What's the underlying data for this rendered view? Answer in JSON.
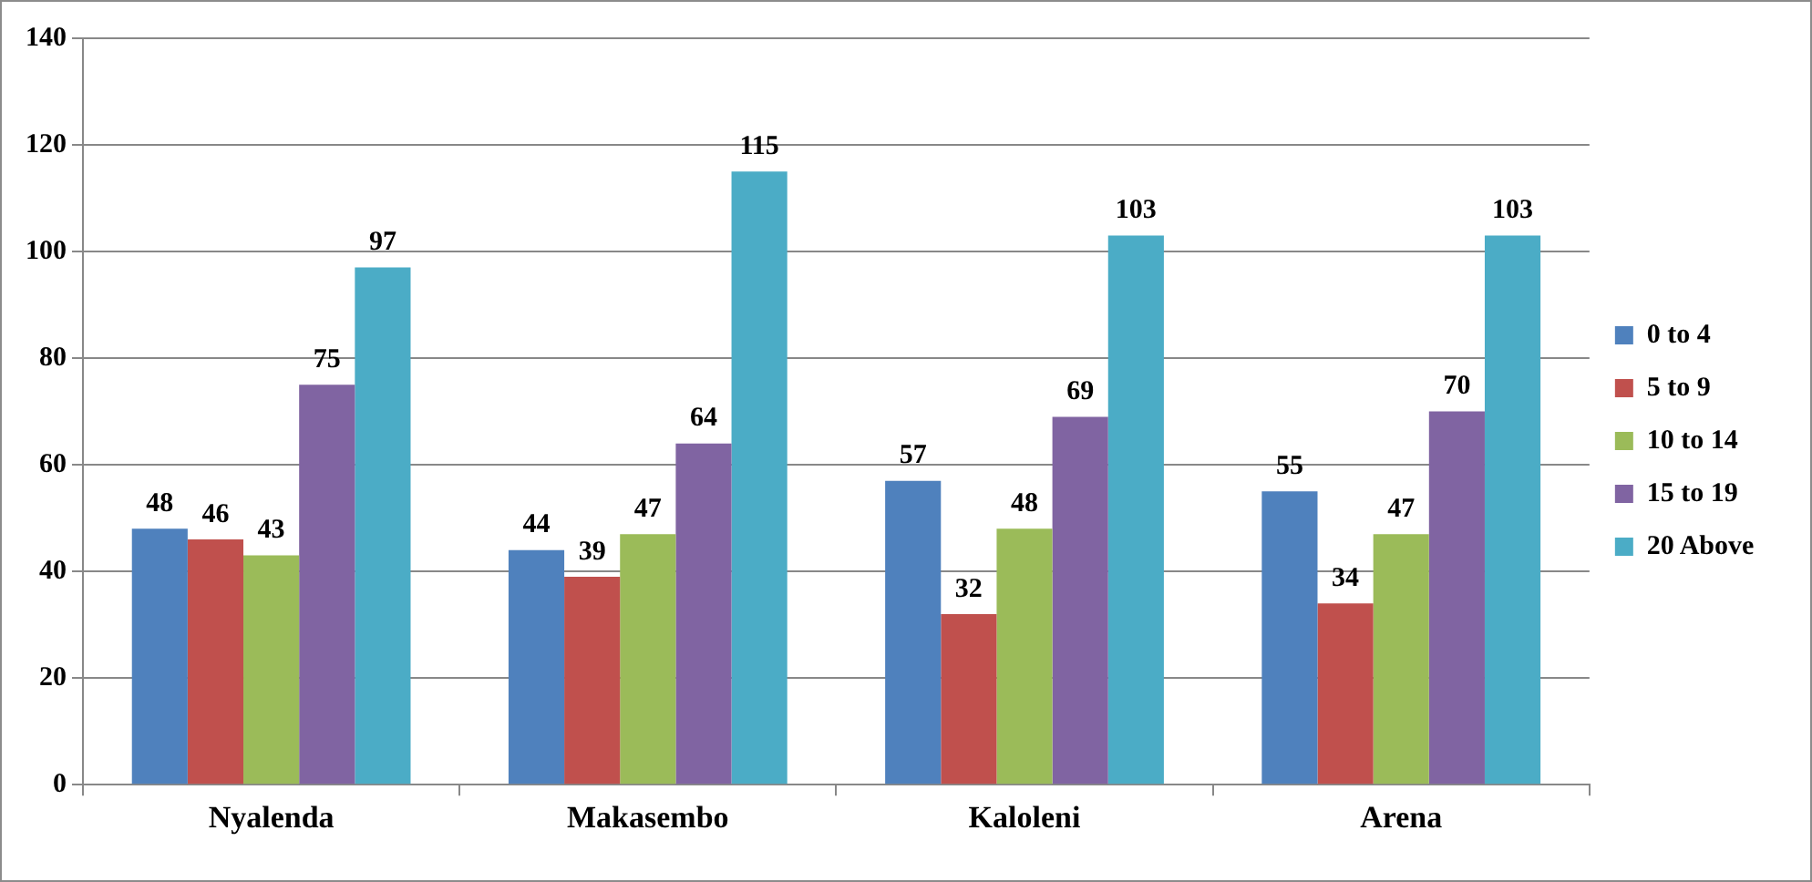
{
  "chart_data": {
    "type": "bar",
    "categories": [
      "Nyalenda",
      "Makasembo",
      "Kaloleni",
      "Arena"
    ],
    "series": [
      {
        "name": "0 to 4",
        "color": "#4f81bd",
        "values": [
          48,
          44,
          57,
          55
        ]
      },
      {
        "name": "5 to 9",
        "color": "#c0504d",
        "values": [
          46,
          39,
          32,
          34
        ]
      },
      {
        "name": "10 to 14",
        "color": "#9bbb59",
        "values": [
          43,
          47,
          48,
          47
        ]
      },
      {
        "name": "15 to 19",
        "color": "#8064a2",
        "values": [
          75,
          64,
          69,
          70
        ]
      },
      {
        "name": "20 Above",
        "color": "#4bacc6",
        "values": [
          97,
          115,
          103,
          103
        ]
      }
    ],
    "ylim": [
      0,
      140
    ],
    "yticks": [
      0,
      20,
      40,
      60,
      80,
      100,
      120,
      140
    ],
    "grid": "y",
    "legend": "right",
    "data_labels": true
  }
}
